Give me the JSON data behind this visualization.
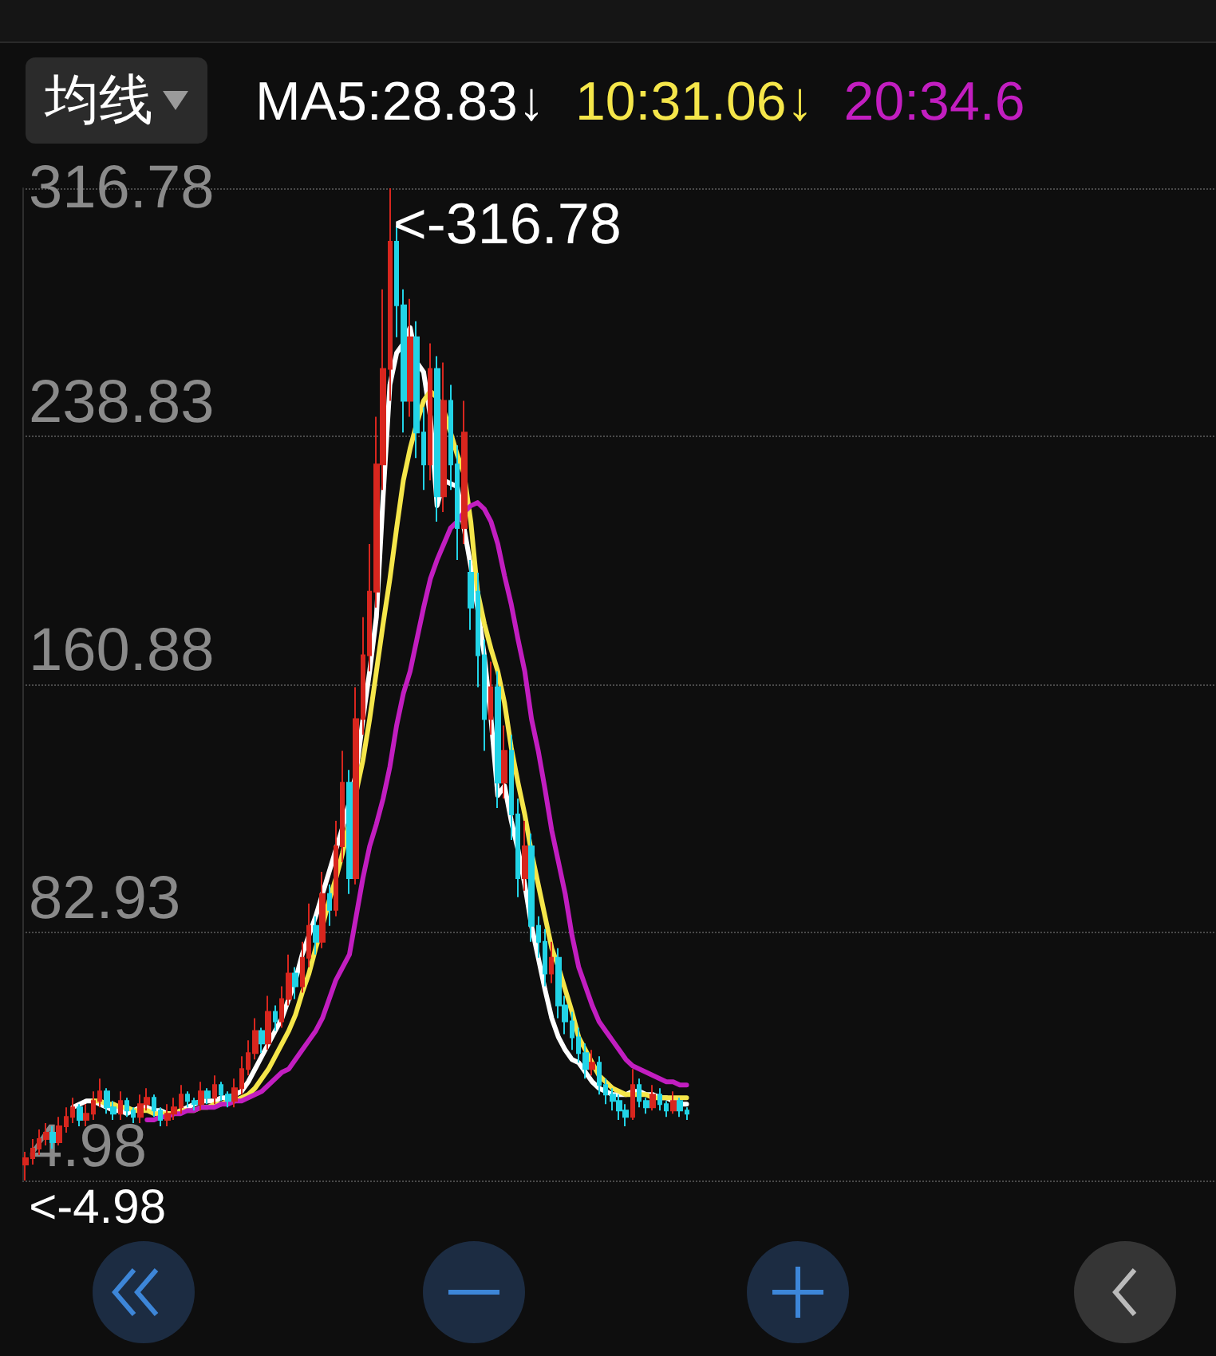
{
  "chart_data": {
    "type": "candlestick",
    "legend_title": "均线",
    "legend": "top",
    "grid": "y",
    "tick_labels": "y",
    "ylim": [
      4.98,
      316.78
    ],
    "yticks": [
      4.98,
      82.93,
      160.88,
      238.83,
      316.78
    ],
    "annotations": [
      "<-316.78",
      "<-4.98"
    ],
    "categories": [
      null,
      null,
      null,
      null,
      null,
      null,
      null,
      null,
      null,
      null,
      null,
      null,
      null,
      null,
      null,
      null,
      null,
      null,
      null,
      null,
      null,
      null,
      null,
      null,
      null,
      null,
      null,
      null,
      null,
      null,
      null,
      null,
      null,
      null,
      null,
      null,
      null,
      null,
      null,
      null,
      null,
      null,
      null,
      null,
      null,
      null,
      null,
      null,
      null,
      null,
      null,
      null,
      null,
      null,
      null,
      null,
      null,
      null,
      null,
      null,
      null,
      null,
      null,
      null,
      null,
      null,
      null,
      null,
      null,
      null,
      null,
      null,
      null,
      null,
      null,
      null,
      null,
      null,
      null,
      null,
      null,
      null,
      null,
      null,
      null,
      null,
      null,
      null,
      null,
      null,
      null,
      null,
      null,
      null,
      null,
      null,
      null,
      null,
      null
    ],
    "ohlc": [
      [
        10,
        14,
        4.98,
        12
      ],
      [
        12,
        18,
        10,
        15
      ],
      [
        15,
        21,
        13,
        18
      ],
      [
        18,
        23,
        16,
        20
      ],
      [
        20,
        22,
        15,
        17
      ],
      [
        17,
        25,
        16,
        22
      ],
      [
        22,
        28,
        20,
        25
      ],
      [
        25,
        31,
        23,
        28
      ],
      [
        28,
        29,
        22,
        24
      ],
      [
        24,
        29,
        22,
        26
      ],
      [
        26,
        33,
        24,
        30
      ],
      [
        30,
        37,
        28,
        33
      ],
      [
        33,
        34,
        26,
        28
      ],
      [
        28,
        30,
        24,
        26
      ],
      [
        26,
        33,
        24,
        30
      ],
      [
        30,
        31,
        25,
        27
      ],
      [
        27,
        28,
        23,
        25
      ],
      [
        25,
        32,
        23,
        29
      ],
      [
        29,
        34,
        27,
        31
      ],
      [
        31,
        32,
        25,
        27
      ],
      [
        27,
        28,
        22,
        24
      ],
      [
        24,
        29,
        22,
        26
      ],
      [
        26,
        31,
        24,
        28
      ],
      [
        28,
        35,
        26,
        32
      ],
      [
        32,
        33,
        28,
        30
      ],
      [
        30,
        31,
        27,
        29
      ],
      [
        29,
        36,
        27,
        33
      ],
      [
        33,
        34,
        29,
        31
      ],
      [
        31,
        38,
        29,
        35
      ],
      [
        35,
        36,
        30,
        32
      ],
      [
        32,
        33,
        28,
        30
      ],
      [
        30,
        37,
        28,
        34
      ],
      [
        34,
        44,
        32,
        40
      ],
      [
        40,
        49,
        38,
        45
      ],
      [
        45,
        56,
        43,
        52
      ],
      [
        52,
        53,
        45,
        48
      ],
      [
        48,
        63,
        46,
        58
      ],
      [
        58,
        60,
        52,
        55
      ],
      [
        55,
        66,
        53,
        62
      ],
      [
        62,
        76,
        60,
        70
      ],
      [
        70,
        72,
        62,
        66
      ],
      [
        66,
        80,
        64,
        75
      ],
      [
        75,
        92,
        72,
        85
      ],
      [
        85,
        88,
        76,
        80
      ],
      [
        80,
        102,
        78,
        95
      ],
      [
        95,
        98,
        85,
        90
      ],
      [
        90,
        118,
        88,
        110
      ],
      [
        110,
        140,
        105,
        130
      ],
      [
        130,
        134,
        95,
        100
      ],
      [
        100,
        160,
        98,
        150
      ],
      [
        150,
        182,
        145,
        170
      ],
      [
        170,
        205,
        165,
        190
      ],
      [
        190,
        245,
        185,
        230
      ],
      [
        230,
        285,
        222,
        260
      ],
      [
        260,
        316.78,
        250,
        300
      ],
      [
        300,
        305,
        270,
        280
      ],
      [
        280,
        285,
        240,
        250
      ],
      [
        250,
        282,
        245,
        270
      ],
      [
        270,
        275,
        232,
        240
      ],
      [
        240,
        248,
        222,
        230
      ],
      [
        230,
        268,
        225,
        260
      ],
      [
        260,
        264,
        212,
        220
      ],
      [
        220,
        262,
        215,
        250
      ],
      [
        250,
        255,
        222,
        230
      ],
      [
        230,
        236,
        200,
        210
      ],
      [
        210,
        250,
        205,
        240
      ],
      [
        196,
        200,
        178,
        185
      ],
      [
        190,
        196,
        160,
        170
      ],
      [
        170,
        175,
        140,
        150
      ],
      [
        150,
        168,
        145,
        160
      ],
      [
        160,
        165,
        122,
        130
      ],
      [
        130,
        148,
        125,
        140
      ],
      [
        140,
        145,
        112,
        120
      ],
      [
        120,
        125,
        94,
        100
      ],
      [
        100,
        118,
        96,
        110
      ],
      [
        110,
        114,
        80,
        85
      ],
      [
        85,
        88,
        75,
        80
      ],
      [
        80,
        84,
        66,
        70
      ],
      [
        70,
        80,
        67,
        75
      ],
      [
        75,
        78,
        56,
        60
      ],
      [
        60,
        63,
        51,
        55
      ],
      [
        55,
        58,
        46,
        50
      ],
      [
        50,
        53,
        42,
        45
      ],
      [
        45,
        48,
        37,
        40
      ],
      [
        40,
        46,
        38,
        42
      ],
      [
        42,
        44,
        32,
        35
      ],
      [
        35,
        37,
        29,
        32
      ],
      [
        32,
        34,
        27,
        30
      ],
      [
        30,
        32,
        24,
        27
      ],
      [
        27,
        29,
        22,
        25
      ],
      [
        25,
        40,
        24,
        35
      ],
      [
        35,
        37,
        28,
        30
      ],
      [
        30,
        31,
        26,
        28
      ],
      [
        28,
        35,
        27,
        32
      ],
      [
        32,
        34,
        27,
        29
      ],
      [
        29,
        30,
        25,
        27
      ],
      [
        27,
        33,
        26,
        30
      ],
      [
        30,
        31,
        25,
        27
      ],
      [
        27,
        28,
        24,
        26
      ]
    ],
    "colors": [
      "#d8261e",
      "#d8261e",
      "#d8261e",
      "#d8261e",
      "#22d3e6",
      "#d8261e",
      "#d8261e",
      "#d8261e",
      "#22d3e6",
      "#d8261e",
      "#d8261e",
      "#d8261e",
      "#22d3e6",
      "#22d3e6",
      "#d8261e",
      "#22d3e6",
      "#22d3e6",
      "#d8261e",
      "#d8261e",
      "#22d3e6",
      "#22d3e6",
      "#d8261e",
      "#d8261e",
      "#d8261e",
      "#22d3e6",
      "#22d3e6",
      "#d8261e",
      "#22d3e6",
      "#d8261e",
      "#22d3e6",
      "#22d3e6",
      "#d8261e",
      "#d8261e",
      "#d8261e",
      "#d8261e",
      "#22d3e6",
      "#d8261e",
      "#22d3e6",
      "#d8261e",
      "#d8261e",
      "#22d3e6",
      "#d8261e",
      "#d8261e",
      "#22d3e6",
      "#d8261e",
      "#22d3e6",
      "#d8261e",
      "#d8261e",
      "#22d3e6",
      "#d8261e",
      "#d8261e",
      "#d8261e",
      "#d8261e",
      "#d8261e",
      "#d8261e",
      "#22d3e6",
      "#22d3e6",
      "#d8261e",
      "#22d3e6",
      "#22d3e6",
      "#d8261e",
      "#22d3e6",
      "#d8261e",
      "#22d3e6",
      "#22d3e6",
      "#d8261e",
      "#22d3e6",
      "#22d3e6",
      "#22d3e6",
      "#d8261e",
      "#22d3e6",
      "#d8261e",
      "#22d3e6",
      "#22d3e6",
      "#d8261e",
      "#22d3e6",
      "#22d3e6",
      "#22d3e6",
      "#d8261e",
      "#22d3e6",
      "#22d3e6",
      "#22d3e6",
      "#22d3e6",
      "#22d3e6",
      "#d8261e",
      "#22d3e6",
      "#22d3e6",
      "#22d3e6",
      "#22d3e6",
      "#22d3e6",
      "#d8261e",
      "#22d3e6",
      "#22d3e6",
      "#d8261e",
      "#22d3e6",
      "#22d3e6",
      "#d8261e",
      "#22d3e6",
      "#22d3e6"
    ],
    "series": [
      {
        "type": "line",
        "name": "MA5:28.83↓",
        "color": "#ffffff",
        "values": [
          null,
          null,
          null,
          null,
          null,
          null,
          null,
          28,
          29,
          30,
          30,
          29,
          28,
          27,
          27,
          26,
          27,
          28,
          28,
          27,
          27,
          26,
          26,
          27,
          28,
          29,
          30,
          30,
          30,
          31,
          31,
          32,
          33,
          36,
          40,
          44,
          48,
          52,
          56,
          62,
          68,
          76,
          82,
          88,
          95,
          102,
          109,
          116,
          124,
          133,
          150,
          165,
          182,
          220,
          255,
          265,
          268,
          273,
          262,
          259,
          245,
          217,
          225,
          224,
          223,
          210,
          198,
          185,
          170,
          150,
          126,
          129,
          118,
          109,
          98,
          85,
          75,
          65,
          56,
          50,
          46,
          43,
          42,
          39,
          36,
          34,
          33,
          32,
          32,
          32,
          33,
          33,
          32,
          32,
          31,
          31,
          30,
          29,
          29
        ]
      },
      {
        "type": "line",
        "name": "10:31.06↓",
        "color": "#f5e64a",
        "values": [
          null,
          null,
          null,
          null,
          null,
          null,
          null,
          null,
          null,
          null,
          30,
          30,
          29,
          29,
          28,
          28,
          27,
          27,
          27,
          26,
          26,
          26,
          26,
          27,
          27,
          27,
          28,
          28,
          29,
          29,
          30,
          30,
          31,
          32,
          34,
          37,
          40,
          44,
          48,
          52,
          57,
          64,
          70,
          78,
          85,
          93,
          100,
          108,
          118,
          127,
          137,
          150,
          165,
          180,
          194,
          210,
          225,
          235,
          243,
          250,
          253,
          251,
          247,
          240,
          233,
          227,
          212,
          190,
          180,
          172,
          165,
          155,
          141,
          130,
          120,
          108,
          98,
          88,
          78,
          72,
          65,
          58,
          50,
          46,
          42,
          38,
          36,
          34,
          33,
          32,
          32,
          32,
          32,
          31,
          31,
          31,
          31,
          31,
          31
        ]
      },
      {
        "type": "line",
        "name": "20:34.6",
        "color": "#c21ec0",
        "values": [
          null,
          null,
          null,
          null,
          null,
          null,
          null,
          null,
          null,
          null,
          null,
          null,
          null,
          null,
          null,
          null,
          null,
          null,
          24,
          24,
          25,
          25,
          26,
          26,
          27,
          27,
          28,
          28,
          28,
          29,
          29,
          30,
          30,
          31,
          32,
          33,
          35,
          37,
          39,
          40,
          43,
          46,
          49,
          52,
          56,
          62,
          68,
          72,
          76,
          88,
          100,
          110,
          117,
          125,
          135,
          148,
          158,
          165,
          175,
          185,
          194,
          200,
          205,
          210,
          212,
          215,
          217,
          218,
          216,
          212,
          205,
          195,
          186,
          175,
          165,
          150,
          140,
          128,
          115,
          105,
          95,
          82,
          72,
          66,
          60,
          55,
          52,
          49,
          46,
          43,
          41,
          40,
          39,
          38,
          37,
          36,
          36,
          35,
          35
        ]
      }
    ]
  }
}
